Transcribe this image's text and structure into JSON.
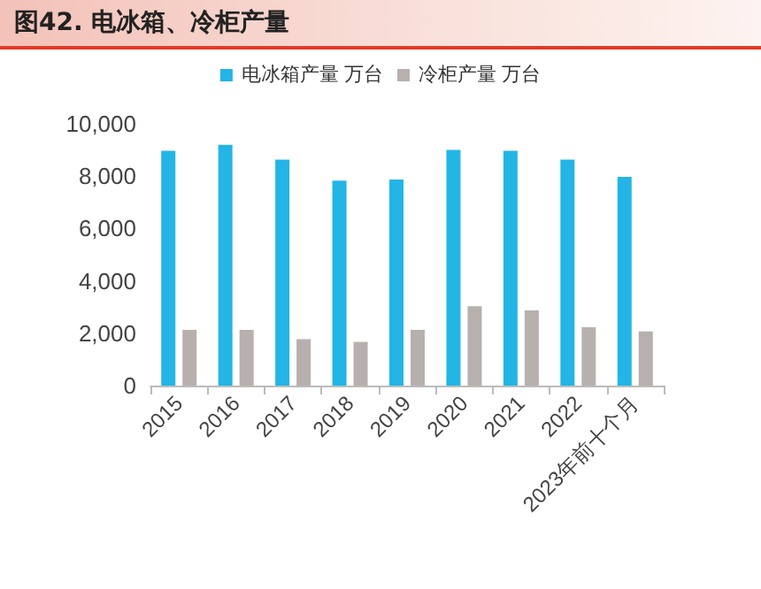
{
  "chart_data": {
    "type": "bar",
    "title": "图42. 电冰箱、冷柜产量",
    "categories": [
      "2015",
      "2016",
      "2017",
      "2018",
      "2019",
      "2020",
      "2021",
      "2022",
      "2023年前十个月"
    ],
    "series": [
      {
        "name": "电冰箱产量 万台",
        "color": "#22b5e6",
        "values": [
          8970,
          9200,
          8630,
          7830,
          7870,
          9000,
          8970,
          8630,
          7970
        ]
      },
      {
        "name": "冷柜产量 万台",
        "color": "#b8b0ae",
        "values": [
          2130,
          2130,
          1770,
          1670,
          2130,
          3030,
          2870,
          2230,
          2070
        ]
      }
    ],
    "ylim": [
      0,
      10000
    ],
    "yticks": [
      0,
      {
        "value": 2000,
        "label": "2,000"
      },
      {
        "value": 4000,
        "label": "4,000"
      },
      {
        "value": 6000,
        "label": "6,000"
      },
      {
        "value": 8000,
        "label": "8,000"
      },
      {
        "value": 10000,
        "label": "10,000"
      }
    ],
    "grid": false,
    "legend": "top"
  }
}
